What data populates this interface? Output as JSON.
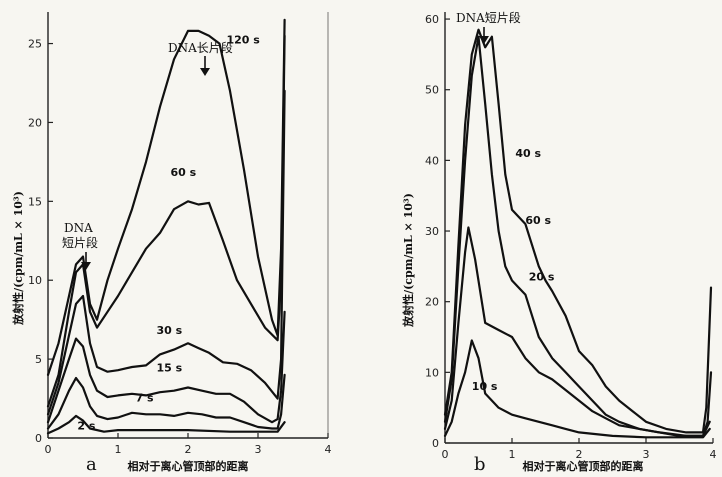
{
  "chart_data": [
    {
      "type": "line",
      "panel_label": "a",
      "xlabel": "相对于离心管顶部的距离",
      "ylabel": "放射性/(cpm/mL × 10³)",
      "xlim": [
        0,
        4
      ],
      "ylim": [
        0,
        27
      ],
      "x_ticks": [
        0,
        1,
        2,
        3,
        4
      ],
      "y_ticks": [
        0,
        5,
        10,
        15,
        20,
        25
      ],
      "annotations": [
        {
          "text": "DNA长片段",
          "x": 2.28,
          "y": 26.5
        },
        {
          "text": "DNA",
          "x": 0.45,
          "y": 13.8
        },
        {
          "text": "短片段",
          "x": 0.45,
          "y": 12.5
        }
      ],
      "series": [
        {
          "name": "120 s",
          "label_at": [
            2.55,
            25.0
          ],
          "points": [
            [
              0.0,
              4.0
            ],
            [
              0.15,
              6.0
            ],
            [
              0.3,
              9.0
            ],
            [
              0.4,
              11.0
            ],
            [
              0.5,
              11.5
            ],
            [
              0.6,
              8.5
            ],
            [
              0.7,
              7.5
            ],
            [
              0.85,
              10.0
            ],
            [
              1.0,
              12.0
            ],
            [
              1.2,
              14.5
            ],
            [
              1.4,
              17.5
            ],
            [
              1.6,
              21.0
            ],
            [
              1.8,
              24.0
            ],
            [
              2.0,
              25.8
            ],
            [
              2.15,
              25.8
            ],
            [
              2.3,
              25.5
            ],
            [
              2.45,
              25.0
            ],
            [
              2.6,
              22.0
            ],
            [
              2.8,
              17.0
            ],
            [
              3.0,
              11.5
            ],
            [
              3.2,
              7.5
            ],
            [
              3.28,
              6.5
            ],
            [
              3.33,
              12.0
            ],
            [
              3.38,
              26.5
            ]
          ]
        },
        {
          "name": "60 s",
          "label_at": [
            1.75,
            16.6
          ],
          "points": [
            [
              0.0,
              2.0
            ],
            [
              0.15,
              4.0
            ],
            [
              0.3,
              8.0
            ],
            [
              0.4,
              10.5
            ],
            [
              0.5,
              11.0
            ],
            [
              0.6,
              8.0
            ],
            [
              0.7,
              7.0
            ],
            [
              0.85,
              8.0
            ],
            [
              1.0,
              9.0
            ],
            [
              1.2,
              10.5
            ],
            [
              1.4,
              12.0
            ],
            [
              1.6,
              13.0
            ],
            [
              1.8,
              14.5
            ],
            [
              2.0,
              15.0
            ],
            [
              2.15,
              14.8
            ],
            [
              2.3,
              14.9
            ],
            [
              2.5,
              12.5
            ],
            [
              2.7,
              10.0
            ],
            [
              2.9,
              8.5
            ],
            [
              3.1,
              7.0
            ],
            [
              3.28,
              6.2
            ],
            [
              3.33,
              10.0
            ],
            [
              3.38,
              25.5
            ]
          ]
        },
        {
          "name": "30 s",
          "label_at": [
            1.55,
            6.6
          ],
          "points": [
            [
              0.0,
              1.5
            ],
            [
              0.15,
              3.5
            ],
            [
              0.3,
              6.5
            ],
            [
              0.4,
              8.5
            ],
            [
              0.5,
              9.0
            ],
            [
              0.6,
              6.0
            ],
            [
              0.7,
              4.5
            ],
            [
              0.85,
              4.2
            ],
            [
              1.0,
              4.3
            ],
            [
              1.2,
              4.5
            ],
            [
              1.4,
              4.6
            ],
            [
              1.6,
              5.3
            ],
            [
              1.8,
              5.6
            ],
            [
              2.0,
              6.0
            ],
            [
              2.15,
              5.7
            ],
            [
              2.3,
              5.4
            ],
            [
              2.5,
              4.8
            ],
            [
              2.7,
              4.7
            ],
            [
              2.9,
              4.3
            ],
            [
              3.1,
              3.5
            ],
            [
              3.28,
              2.5
            ],
            [
              3.33,
              5.0
            ],
            [
              3.38,
              22.0
            ]
          ]
        },
        {
          "name": "15 s",
          "label_at": [
            1.55,
            4.2
          ],
          "points": [
            [
              0.0,
              1.0
            ],
            [
              0.15,
              3.0
            ],
            [
              0.3,
              5.0
            ],
            [
              0.4,
              6.3
            ],
            [
              0.5,
              5.8
            ],
            [
              0.6,
              4.0
            ],
            [
              0.7,
              3.0
            ],
            [
              0.85,
              2.6
            ],
            [
              1.0,
              2.7
            ],
            [
              1.2,
              2.8
            ],
            [
              1.4,
              2.7
            ],
            [
              1.6,
              2.9
            ],
            [
              1.8,
              3.0
            ],
            [
              2.0,
              3.2
            ],
            [
              2.2,
              3.0
            ],
            [
              2.4,
              2.8
            ],
            [
              2.6,
              2.8
            ],
            [
              2.8,
              2.3
            ],
            [
              3.0,
              1.5
            ],
            [
              3.2,
              1.0
            ],
            [
              3.28,
              1.2
            ],
            [
              3.33,
              3.0
            ],
            [
              3.38,
              8.0
            ]
          ]
        },
        {
          "name": "7 s",
          "label_at": [
            1.25,
            2.3
          ],
          "points": [
            [
              0.0,
              0.6
            ],
            [
              0.15,
              1.5
            ],
            [
              0.3,
              3.0
            ],
            [
              0.4,
              3.8
            ],
            [
              0.5,
              3.2
            ],
            [
              0.6,
              2.0
            ],
            [
              0.7,
              1.4
            ],
            [
              0.85,
              1.2
            ],
            [
              1.0,
              1.3
            ],
            [
              1.2,
              1.6
            ],
            [
              1.4,
              1.5
            ],
            [
              1.6,
              1.5
            ],
            [
              1.8,
              1.4
            ],
            [
              2.0,
              1.6
            ],
            [
              2.2,
              1.5
            ],
            [
              2.4,
              1.3
            ],
            [
              2.6,
              1.3
            ],
            [
              2.8,
              1.0
            ],
            [
              3.0,
              0.7
            ],
            [
              3.2,
              0.6
            ],
            [
              3.28,
              0.6
            ],
            [
              3.33,
              1.5
            ],
            [
              3.38,
              4.0
            ]
          ]
        },
        {
          "name": "2 s",
          "label_at": [
            0.42,
            0.55
          ],
          "points": [
            [
              0.0,
              0.3
            ],
            [
              0.15,
              0.6
            ],
            [
              0.3,
              1.0
            ],
            [
              0.4,
              1.4
            ],
            [
              0.5,
              1.1
            ],
            [
              0.6,
              0.6
            ],
            [
              0.8,
              0.4
            ],
            [
              1.0,
              0.5
            ],
            [
              1.4,
              0.5
            ],
            [
              2.0,
              0.5
            ],
            [
              2.6,
              0.4
            ],
            [
              3.0,
              0.4
            ],
            [
              3.28,
              0.4
            ],
            [
              3.38,
              1.0
            ]
          ]
        }
      ]
    },
    {
      "type": "line",
      "panel_label": "b",
      "xlabel": "相对于离心管顶部的距离",
      "ylabel": "放射性/(cpm/mL × 10³)",
      "xlim": [
        0,
        4
      ],
      "ylim": [
        0,
        61
      ],
      "x_ticks": [
        0,
        1,
        2,
        3,
        4
      ],
      "y_ticks": [
        0,
        10,
        20,
        30,
        40,
        50,
        60
      ],
      "annotations": [
        {
          "text": "DNA短片段",
          "x": 0.65,
          "y": 60.0
        }
      ],
      "series": [
        {
          "name": "60 s",
          "label_at": [
            1.2,
            31.0
          ],
          "points": [
            [
              0.0,
              4.0
            ],
            [
              0.1,
              10.0
            ],
            [
              0.2,
              28.0
            ],
            [
              0.3,
              45.0
            ],
            [
              0.4,
              55.0
            ],
            [
              0.5,
              58.5
            ],
            [
              0.6,
              56.0
            ],
            [
              0.7,
              57.5
            ],
            [
              0.8,
              48.0
            ],
            [
              0.9,
              38.0
            ],
            [
              1.0,
              33.0
            ],
            [
              1.1,
              32.0
            ],
            [
              1.2,
              31.0
            ],
            [
              1.3,
              28.0
            ],
            [
              1.4,
              25.0
            ],
            [
              1.5,
              23.0
            ],
            [
              1.6,
              21.5
            ],
            [
              1.8,
              18.0
            ],
            [
              2.0,
              13.0
            ],
            [
              2.2,
              11.0
            ],
            [
              2.4,
              8.0
            ],
            [
              2.6,
              6.0
            ],
            [
              2.8,
              4.5
            ],
            [
              3.0,
              3.0
            ],
            [
              3.3,
              2.0
            ],
            [
              3.6,
              1.5
            ],
            [
              3.85,
              1.5
            ],
            [
              3.9,
              5.0
            ],
            [
              3.97,
              22.0
            ]
          ]
        },
        {
          "name": "40 s",
          "label_at": [
            1.05,
            40.5
          ],
          "points": [
            [
              0.0,
              3.0
            ],
            [
              0.1,
              9.0
            ],
            [
              0.2,
              25.0
            ],
            [
              0.3,
              40.0
            ],
            [
              0.4,
              52.0
            ],
            [
              0.5,
              57.5
            ],
            [
              0.6,
              48.0
            ],
            [
              0.7,
              38.0
            ],
            [
              0.8,
              30.0
            ],
            [
              0.9,
              25.0
            ],
            [
              1.0,
              23.0
            ],
            [
              1.1,
              22.0
            ],
            [
              1.2,
              21.0
            ],
            [
              1.3,
              18.0
            ],
            [
              1.4,
              15.0
            ],
            [
              1.6,
              12.0
            ],
            [
              1.8,
              10.0
            ],
            [
              2.0,
              8.0
            ],
            [
              2.2,
              6.0
            ],
            [
              2.4,
              4.0
            ],
            [
              2.6,
              3.0
            ],
            [
              2.9,
              2.0
            ],
            [
              3.2,
              1.5
            ],
            [
              3.6,
              1.0
            ],
            [
              3.85,
              1.0
            ],
            [
              3.92,
              3.0
            ],
            [
              3.97,
              10.0
            ]
          ]
        },
        {
          "name": "20 s",
          "label_at": [
            1.25,
            23.0
          ],
          "points": [
            [
              0.0,
              2.0
            ],
            [
              0.1,
              6.0
            ],
            [
              0.2,
              17.0
            ],
            [
              0.3,
              27.0
            ],
            [
              0.35,
              30.5
            ],
            [
              0.45,
              26.0
            ],
            [
              0.6,
              17.0
            ],
            [
              0.8,
              16.0
            ],
            [
              1.0,
              15.0
            ],
            [
              1.2,
              12.0
            ],
            [
              1.4,
              10.0
            ],
            [
              1.6,
              9.0
            ],
            [
              1.8,
              7.5
            ],
            [
              2.0,
              6.0
            ],
            [
              2.2,
              4.5
            ],
            [
              2.4,
              3.5
            ],
            [
              2.6,
              2.5
            ],
            [
              2.9,
              2.0
            ],
            [
              3.2,
              1.5
            ],
            [
              3.5,
              1.0
            ],
            [
              3.85,
              1.0
            ],
            [
              3.95,
              3.0
            ]
          ]
        },
        {
          "name": "10 s",
          "label_at": [
            0.4,
            7.5
          ],
          "points": [
            [
              0.0,
              1.0
            ],
            [
              0.1,
              3.0
            ],
            [
              0.2,
              7.0
            ],
            [
              0.3,
              10.0
            ],
            [
              0.4,
              14.5
            ],
            [
              0.5,
              12.0
            ],
            [
              0.6,
              7.0
            ],
            [
              0.8,
              5.0
            ],
            [
              1.0,
              4.0
            ],
            [
              1.2,
              3.5
            ],
            [
              1.4,
              3.0
            ],
            [
              1.6,
              2.5
            ],
            [
              1.8,
              2.0
            ],
            [
              2.0,
              1.5
            ],
            [
              2.5,
              1.0
            ],
            [
              3.0,
              0.8
            ],
            [
              3.5,
              0.8
            ],
            [
              3.85,
              0.8
            ],
            [
              3.95,
              2.0
            ]
          ]
        }
      ]
    }
  ]
}
